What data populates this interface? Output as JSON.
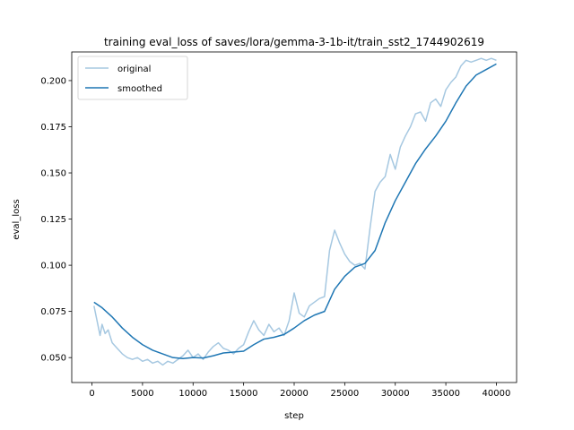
{
  "chart_data": {
    "type": "line",
    "title": "training eval_loss of saves/lora/gemma-3-1b-it/train_sst2_1744902619",
    "xlabel": "step",
    "ylabel": "eval_loss",
    "xlim": [
      -2000,
      42000
    ],
    "ylim": [
      0.0365,
      0.2155
    ],
    "xticks": [
      0,
      5000,
      10000,
      15000,
      20000,
      25000,
      30000,
      35000,
      40000
    ],
    "xtick_labels": [
      "0",
      "5000",
      "10000",
      "15000",
      "20000",
      "25000",
      "30000",
      "35000",
      "40000"
    ],
    "yticks": [
      0.05,
      0.075,
      0.1,
      0.125,
      0.15,
      0.175,
      0.2
    ],
    "ytick_labels": [
      "0.050",
      "0.075",
      "0.100",
      "0.125",
      "0.150",
      "0.175",
      "0.200"
    ],
    "legend_position": "upper-left",
    "series": [
      {
        "name": "original",
        "color": "#a6c8e1",
        "x": [
          200,
          500,
          800,
          1000,
          1300,
          1600,
          2000,
          2500,
          3000,
          3500,
          4000,
          4500,
          5000,
          5500,
          6000,
          6500,
          7000,
          7500,
          8000,
          8500,
          9000,
          9500,
          10000,
          10500,
          11000,
          11500,
          12000,
          12500,
          13000,
          13500,
          14000,
          14500,
          15000,
          15500,
          16000,
          16500,
          17000,
          17500,
          18000,
          18500,
          19000,
          19500,
          20000,
          20500,
          21000,
          21500,
          22000,
          22500,
          23000,
          23500,
          24000,
          24500,
          25000,
          25500,
          26000,
          26500,
          27000,
          27500,
          28000,
          28500,
          29000,
          29500,
          30000,
          30500,
          31000,
          31500,
          32000,
          32500,
          33000,
          33500,
          34000,
          34500,
          35000,
          35500,
          36000,
          36500,
          37000,
          37500,
          38000,
          38500,
          39000,
          39500,
          40000
        ],
        "values": [
          0.078,
          0.07,
          0.062,
          0.068,
          0.063,
          0.065,
          0.058,
          0.055,
          0.052,
          0.05,
          0.049,
          0.05,
          0.048,
          0.049,
          0.047,
          0.048,
          0.046,
          0.048,
          0.047,
          0.049,
          0.051,
          0.054,
          0.05,
          0.052,
          0.049,
          0.053,
          0.056,
          0.058,
          0.055,
          0.054,
          0.052,
          0.055,
          0.057,
          0.064,
          0.07,
          0.065,
          0.062,
          0.068,
          0.064,
          0.066,
          0.062,
          0.07,
          0.085,
          0.074,
          0.072,
          0.078,
          0.08,
          0.082,
          0.083,
          0.108,
          0.119,
          0.112,
          0.106,
          0.102,
          0.1,
          0.101,
          0.098,
          0.12,
          0.14,
          0.145,
          0.148,
          0.16,
          0.152,
          0.164,
          0.17,
          0.175,
          0.182,
          0.183,
          0.178,
          0.188,
          0.19,
          0.186,
          0.195,
          0.199,
          0.202,
          0.208,
          0.211,
          0.21,
          0.211,
          0.212,
          0.211,
          0.212,
          0.211
        ]
      },
      {
        "name": "smoothed",
        "color": "#1f77b4",
        "x": [
          200,
          1000,
          2000,
          3000,
          4000,
          5000,
          6000,
          7000,
          8000,
          9000,
          10000,
          11000,
          12000,
          13000,
          14000,
          15000,
          16000,
          17000,
          18000,
          19000,
          20000,
          21000,
          22000,
          23000,
          24000,
          25000,
          26000,
          27000,
          28000,
          29000,
          30000,
          31000,
          32000,
          33000,
          34000,
          35000,
          36000,
          37000,
          38000,
          39000,
          40000
        ],
        "values": [
          0.08,
          0.077,
          0.072,
          0.066,
          0.061,
          0.057,
          0.054,
          0.052,
          0.05,
          0.0495,
          0.05,
          0.0498,
          0.051,
          0.0525,
          0.053,
          0.0535,
          0.057,
          0.06,
          0.061,
          0.0625,
          0.066,
          0.07,
          0.073,
          0.075,
          0.087,
          0.094,
          0.099,
          0.101,
          0.108,
          0.123,
          0.135,
          0.145,
          0.155,
          0.163,
          0.17,
          0.178,
          0.188,
          0.197,
          0.203,
          0.206,
          0.209
        ]
      }
    ]
  }
}
